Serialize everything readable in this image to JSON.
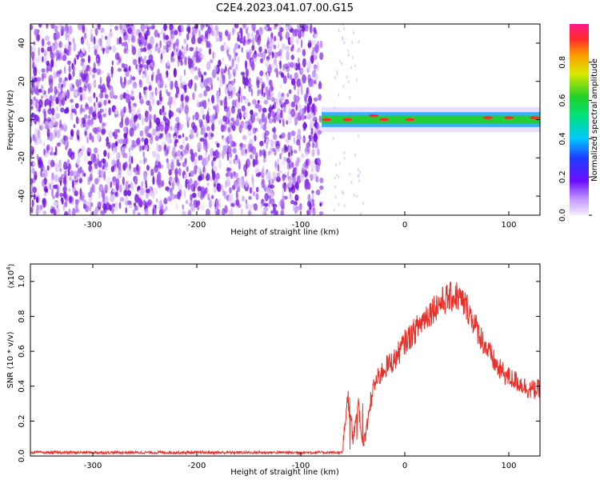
{
  "title": "C2E4.2023.041.07.00.G15",
  "colors": {
    "snr_line": "#e8302a",
    "ridge_core": "#ff2a2a",
    "ridge_mid": "#22d12a",
    "ridge_edge": "#1aa6ff",
    "scatter": "#7a1be0"
  },
  "chart_data": [
    {
      "type": "heatmap",
      "title": "C2E4.2023.041.07.00.G15",
      "xlabel": "Height of straight line (km)",
      "ylabel": "Frequency (Hz)",
      "xlim": [
        -360,
        130
      ],
      "ylim": [
        -50,
        50
      ],
      "xticks": [
        -300,
        -200,
        -100,
        0,
        100
      ],
      "xtick_labels": [
        "-300",
        "-200",
        "-100",
        "0",
        "100"
      ],
      "yticks": [
        -40,
        -20,
        0,
        20,
        40
      ],
      "ytick_labels": [
        "-40",
        "-20",
        "0",
        "20",
        "40"
      ],
      "colorbar": {
        "label": "Normalized spectral amplitude",
        "range": [
          0.0,
          1.0
        ],
        "ticks": [
          0.0,
          0.2,
          0.4,
          0.6,
          0.8
        ],
        "tick_labels": [
          "0.0",
          "0.2",
          "0.4",
          "0.6",
          "0.8"
        ]
      },
      "regions": [
        {
          "description_x_range": [
            -360,
            -80
          ],
          "frequency_range": [
            -50,
            50
          ],
          "amplitude": 0.2
        },
        {
          "description_x_range": [
            -80,
            130
          ],
          "frequency_center": 0,
          "frequency_halfwidth": 3,
          "amplitude_peak": 0.85
        }
      ],
      "ridge_peaks": [
        {
          "x": -75,
          "y": 0,
          "value": 0.85
        },
        {
          "x": -55,
          "y": 0,
          "value": 0.9
        },
        {
          "x": -30,
          "y": 2,
          "value": 0.85
        },
        {
          "x": -20,
          "y": 0,
          "value": 0.9
        },
        {
          "x": 5,
          "y": 0,
          "value": 0.85
        },
        {
          "x": 80,
          "y": 1,
          "value": 0.9
        },
        {
          "x": 100,
          "y": 1,
          "value": 0.9
        },
        {
          "x": 125,
          "y": 1,
          "value": 0.85
        }
      ]
    },
    {
      "type": "line",
      "xlabel": "Height of straight line (km)",
      "ylabel": "SNR (10 * v/v)",
      "scale_label": "(x10",
      "scale_exp": "4",
      "scale_close": ")",
      "xlim": [
        -360,
        130
      ],
      "ylim": [
        0.0,
        1.1
      ],
      "xticks": [
        -300,
        -200,
        -100,
        0,
        100
      ],
      "xtick_labels": [
        "-300",
        "-200",
        "-100",
        "0",
        "100"
      ],
      "yticks": [
        0.0,
        0.2,
        0.4,
        0.6,
        0.8,
        1.0
      ],
      "ytick_labels": [
        "0.0",
        "0.2",
        "0.4",
        "0.6",
        "0.8",
        "1.0"
      ],
      "series": [
        {
          "x": [
            -360,
            -300,
            -200,
            -100,
            -60,
            -55,
            -50,
            -45,
            -40,
            -30,
            -20,
            -10,
            0,
            10,
            20,
            30,
            40,
            50,
            60,
            70,
            80,
            90,
            100,
            110,
            120,
            130
          ],
          "y": [
            0.02,
            0.02,
            0.02,
            0.02,
            0.02,
            0.35,
            0.1,
            0.3,
            0.05,
            0.4,
            0.5,
            0.55,
            0.65,
            0.72,
            0.8,
            0.86,
            0.9,
            0.92,
            0.85,
            0.72,
            0.6,
            0.5,
            0.45,
            0.42,
            0.38,
            0.38
          ]
        }
      ]
    }
  ]
}
